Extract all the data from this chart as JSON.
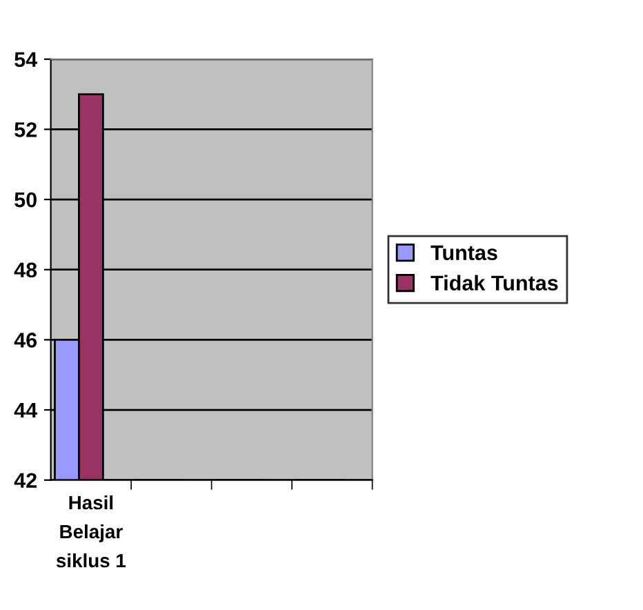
{
  "chart_data": {
    "type": "bar",
    "categories": [
      "Hasil Belajar siklus 1",
      null,
      null,
      null
    ],
    "series": [
      {
        "name": "Tuntas",
        "color": "#9999ff",
        "values": [
          46,
          null,
          null,
          null
        ]
      },
      {
        "name": "Tidak Tuntas",
        "color": "#993366",
        "values": [
          53,
          null,
          null,
          null
        ]
      }
    ],
    "ylim": [
      42,
      54
    ],
    "yticks": [
      42,
      44,
      46,
      48,
      50,
      52,
      54
    ],
    "grid": "y",
    "legend": "right"
  }
}
